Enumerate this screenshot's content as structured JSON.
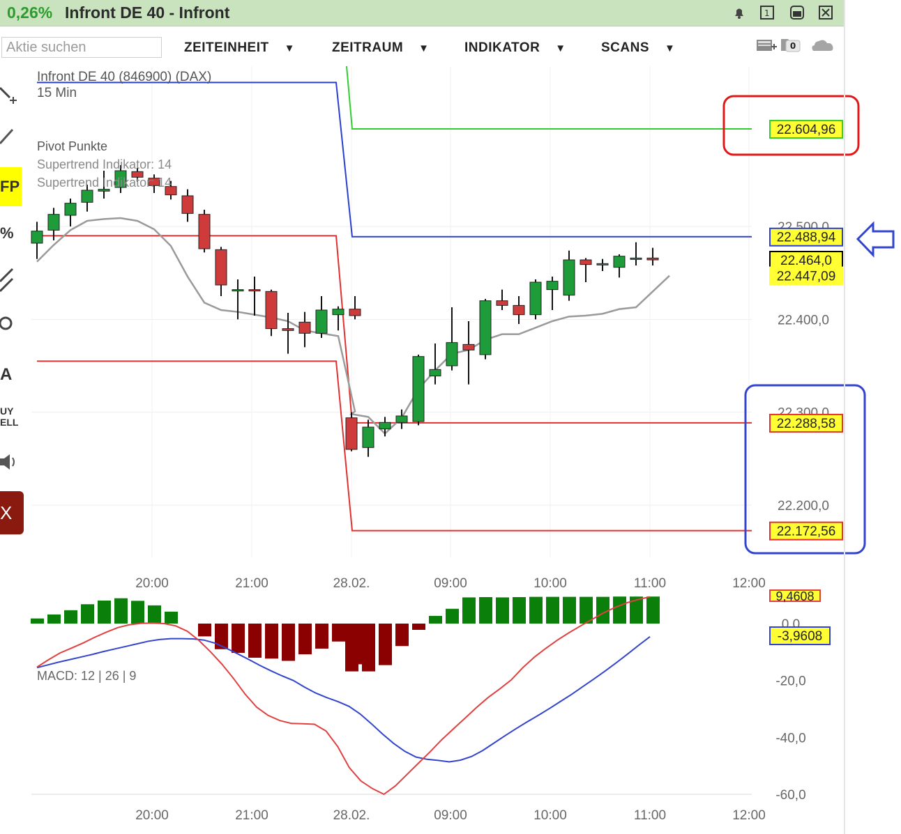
{
  "window": {
    "change": "0,26%",
    "title": "Infront DE 40 - Infront",
    "buttons": [
      "bell-icon",
      "restore-icon",
      "minimize-icon",
      "close-icon"
    ]
  },
  "toolbar": {
    "search_placeholder": "Aktie suchen",
    "menus": [
      "ZEITEINHEIT",
      "ZEITRAUM",
      "INDIKATOR",
      "SCANS"
    ],
    "badge_count": "0"
  },
  "left_toolbar": {
    "fp_label": "FP",
    "percent_label": "%",
    "a_label": "A",
    "buy_label": "UY",
    "sell_label": "ELL",
    "x_label": "X"
  },
  "colors": {
    "bull": "#1f9c3a",
    "bear": "#cf3a3a",
    "pivot_r1": "#33cc33",
    "pivot_p": "#2a3fd0",
    "pivot_s": "#e03030",
    "supertrend": "#9a9a9a",
    "macd_line": "#3344cc",
    "signal_line": "#e04040",
    "hist_pos": "#0a7f0a",
    "hist_neg": "#8b0000"
  },
  "chart_data": [
    {
      "type": "candlestick",
      "title": "Infront DE 40 (846900) (DAX)",
      "subtitle": "15 Min",
      "indicators": [
        "Pivot Punkte",
        "Supertrend Indikator: 14",
        "Supertrend Indikator: 14"
      ],
      "x_ticks": [
        "20:00",
        "21:00",
        "28.02.",
        "09:00",
        "10:00",
        "11:00",
        "12:00"
      ],
      "y_ticks": [
        "22.200,0",
        "22.300,0",
        "22.400,0",
        "22.500,0"
      ],
      "y_tick_values": [
        22200,
        22300,
        22400,
        22500
      ],
      "ylim": [
        22140,
        22680
      ],
      "price_labels": [
        {
          "text": "22.604,96",
          "value": 22604.96,
          "color": "#33cc33"
        },
        {
          "text": "22.488,94",
          "value": 22488.94,
          "color": "#2a3fd0"
        },
        {
          "text": "22.464,0",
          "value": 22464.0,
          "color": "#000000"
        },
        {
          "text": "22.447,09",
          "value": 22447.09,
          "color": "#ffff33"
        },
        {
          "text": "22.288,58",
          "value": 22288.58,
          "color": "#e03030"
        },
        {
          "text": "22.172,56",
          "value": 22172.56,
          "color": "#e03030"
        }
      ],
      "pivot_lines": {
        "day1": {
          "P": 22655,
          "S1": 22490,
          "S2": 22355
        },
        "day2": {
          "R1": 22604.96,
          "P": 22488.94,
          "S1": 22288.58,
          "S2": 22172.56
        }
      },
      "candles": [
        {
          "t": "19:00",
          "o": 22482,
          "h": 22505,
          "l": 22465,
          "c": 22495
        },
        {
          "t": "19:15",
          "o": 22496,
          "h": 22520,
          "l": 22485,
          "c": 22513
        },
        {
          "t": "19:30",
          "o": 22512,
          "h": 22530,
          "l": 22500,
          "c": 22525
        },
        {
          "t": "19:45",
          "o": 22526,
          "h": 22545,
          "l": 22516,
          "c": 22539
        },
        {
          "t": "20:00",
          "o": 22538,
          "h": 22560,
          "l": 22530,
          "c": 22540
        },
        {
          "t": "20:15",
          "o": 22542,
          "h": 22566,
          "l": 22536,
          "c": 22560
        },
        {
          "t": "20:30",
          "o": 22559,
          "h": 22563,
          "l": 22548,
          "c": 22553
        },
        {
          "t": "20:45",
          "o": 22552,
          "h": 22556,
          "l": 22536,
          "c": 22544
        },
        {
          "t": "21:00",
          "o": 22543,
          "h": 22549,
          "l": 22529,
          "c": 22534
        },
        {
          "t": "21:15",
          "o": 22533,
          "h": 22540,
          "l": 22505,
          "c": 22514
        },
        {
          "t": "21:30",
          "o": 22513,
          "h": 22518,
          "l": 22472,
          "c": 22476
        },
        {
          "t": "21:45",
          "o": 22475,
          "h": 22478,
          "l": 22425,
          "c": 22437
        },
        {
          "t": "22:00",
          "o": 22432,
          "h": 22443,
          "l": 22400,
          "c": 22432
        },
        {
          "t": "22:15",
          "o": 22432,
          "h": 22446,
          "l": 22404,
          "c": 22431
        },
        {
          "t": "22:30",
          "o": 22430,
          "h": 22432,
          "l": 22382,
          "c": 22390
        },
        {
          "t": "22:45",
          "o": 22390,
          "h": 22407,
          "l": 22363,
          "c": 22388
        },
        {
          "t": "08:00",
          "o": 22397,
          "h": 22408,
          "l": 22370,
          "c": 22385
        },
        {
          "t": "08:15",
          "o": 22385,
          "h": 22425,
          "l": 22380,
          "c": 22410
        },
        {
          "t": "08:30",
          "o": 22405,
          "h": 22414,
          "l": 22388,
          "c": 22411
        },
        {
          "t": "08:45",
          "o": 22411,
          "h": 22425,
          "l": 22400,
          "c": 22404
        },
        {
          "t": "09:00",
          "o": 22294,
          "h": 22300,
          "l": 22258,
          "c": 22260
        },
        {
          "t": "09:15",
          "o": 22262,
          "h": 22292,
          "l": 22252,
          "c": 22284
        },
        {
          "t": "09:30",
          "o": 22282,
          "h": 22295,
          "l": 22274,
          "c": 22289
        },
        {
          "t": "09:45",
          "o": 22289,
          "h": 22303,
          "l": 22282,
          "c": 22296
        },
        {
          "t": "10:00",
          "o": 22290,
          "h": 22362,
          "l": 22286,
          "c": 22360
        },
        {
          "t": "10:15",
          "o": 22339,
          "h": 22374,
          "l": 22330,
          "c": 22346
        },
        {
          "t": "10:30",
          "o": 22350,
          "h": 22413,
          "l": 22345,
          "c": 22375
        },
        {
          "t": "10:45",
          "o": 22373,
          "h": 22398,
          "l": 22330,
          "c": 22367
        },
        {
          "t": "11:00",
          "o": 22362,
          "h": 22422,
          "l": 22357,
          "c": 22420
        },
        {
          "t": "11:15",
          "o": 22420,
          "h": 22432,
          "l": 22410,
          "c": 22415
        },
        {
          "t": "11:30",
          "o": 22415,
          "h": 22425,
          "l": 22395,
          "c": 22405
        },
        {
          "t": "11:45",
          "o": 22405,
          "h": 22443,
          "l": 22400,
          "c": 22440
        },
        {
          "t": "12:00",
          "o": 22432,
          "h": 22446,
          "l": 22410,
          "c": 22441
        },
        {
          "t": "12:15",
          "o": 22426,
          "h": 22474,
          "l": 22420,
          "c": 22464
        },
        {
          "t": "12:30",
          "o": 22464,
          "h": 22466,
          "l": 22440,
          "c": 22459
        },
        {
          "t": "12:45",
          "o": 22460,
          "h": 22465,
          "l": 22452,
          "c": 22460
        },
        {
          "t": "13:00",
          "o": 22456,
          "h": 22470,
          "l": 22445,
          "c": 22468
        },
        {
          "t": "13:15",
          "o": 22465,
          "h": 22483,
          "l": 22458,
          "c": 22466
        },
        {
          "t": "13:30",
          "o": 22466,
          "h": 22477,
          "l": 22458,
          "c": 22464
        }
      ],
      "supertrend": [
        22462,
        22480,
        22496,
        22506,
        22508,
        22509,
        22506,
        22497,
        22479,
        22446,
        22418,
        22410,
        22408,
        22405,
        22402,
        22398,
        22388,
        22385,
        22382,
        22301,
        22298,
        22295,
        22277,
        22294,
        22325,
        22345,
        22363,
        22367,
        22378,
        22384,
        22384,
        22391,
        22398,
        22403,
        22404,
        22406,
        22411,
        22413,
        22447
      ]
    },
    {
      "type": "bar",
      "title": "MACD: 12 | 26 | 9",
      "y_ticks": [
        "0,0",
        "-20,0",
        "-40,0",
        "-60,0"
      ],
      "y_tick_values": [
        0,
        -20,
        -40,
        -60
      ],
      "ylim": [
        -62,
        10
      ],
      "value_labels": [
        {
          "text": "9,4608",
          "value": 9.4608
        },
        {
          "text": "-3,9608",
          "value": -3.9608
        }
      ],
      "x_ticks": [
        "20:00",
        "21:00",
        "28.02.",
        "09:00",
        "10:00",
        "11:00",
        "12:00"
      ],
      "histogram": [
        1.8,
        3.2,
        4.7,
        6.8,
        8.1,
        8.9,
        8.0,
        6.4,
        4.2,
        0,
        -4.5,
        -9.0,
        -10.3,
        -12.0,
        -12.3,
        -13.1,
        -10.8,
        -8.8,
        -6.3,
        -14.3,
        -16.8,
        -16.8,
        -14.6,
        -7.9,
        -2.2,
        2.7,
        5.2,
        9.2,
        9.3,
        9.2,
        9.3,
        9.4,
        9.4,
        9.4,
        9.4,
        9.4,
        9.5,
        9.5,
        9.5
      ],
      "macd": [
        -15.5,
        -14.5,
        -13.5,
        -12.6,
        -11.7,
        -10.8,
        -9.8,
        -8.9,
        -8.0,
        -7.1,
        -6.2,
        -5.6,
        -5.3,
        -5.3,
        -5.4,
        -5.8,
        -6.9,
        -8.7,
        -10.6,
        -12.6,
        -14.7,
        -16.6,
        -18.4,
        -20.0,
        -22.3,
        -24.4,
        -26.0,
        -27.4,
        -29.1,
        -31.8,
        -35.2,
        -38.8,
        -42.1,
        -44.9,
        -46.9,
        -47.7,
        -48.1,
        -48.6,
        -48.0,
        -46.7,
        -44.6,
        -42.0,
        -39.4,
        -36.9,
        -34.5,
        -32.2,
        -29.8,
        -27.3,
        -24.8,
        -22.1,
        -19.4,
        -16.6,
        -13.7,
        -10.7,
        -7.6,
        -4.6
      ],
      "signal": [
        -15.3,
        -12.7,
        -10.3,
        -8.6,
        -6.8,
        -4.8,
        -3.0,
        -1.4,
        -0.4,
        0.1,
        0.2,
        0.0,
        -0.8,
        -2.7,
        -5.9,
        -9.9,
        -14.3,
        -19.3,
        -24.8,
        -29.4,
        -32.3,
        -34.1,
        -35.1,
        -35.2,
        -35.4,
        -37.8,
        -43.2,
        -50.6,
        -55.3,
        -58.0,
        -60.0,
        -57.0,
        -53.0,
        -49.0,
        -45.0,
        -40.8,
        -37.0,
        -33.3,
        -29.5,
        -26.0,
        -23.0,
        -19.8,
        -15.5,
        -11.8,
        -8.7,
        -5.8,
        -3.2,
        -0.8,
        1.5,
        3.8,
        5.7,
        7.3,
        8.5,
        9.4
      ]
    }
  ]
}
